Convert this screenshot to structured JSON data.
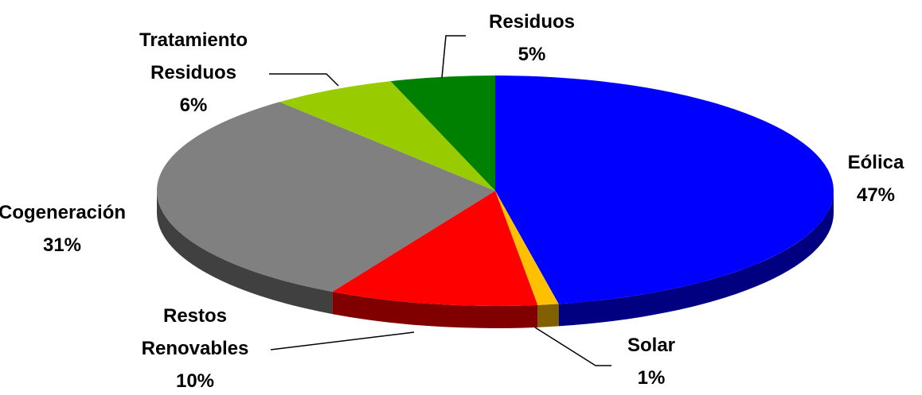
{
  "chart_data": {
    "type": "pie3d",
    "categories": [
      "Eólica",
      "Solar",
      "Restos Renovables",
      "Cogeneración",
      "Tratamiento Residuos",
      "Residuos"
    ],
    "values": [
      47,
      1,
      10,
      31,
      6,
      5
    ],
    "value_labels": [
      "47%",
      "1%",
      "10%",
      "31%",
      "6%",
      "5%"
    ],
    "colors": [
      "#0000ff",
      "#ffc000",
      "#ff0000",
      "#808080",
      "#99cc00",
      "#008000"
    ]
  }
}
